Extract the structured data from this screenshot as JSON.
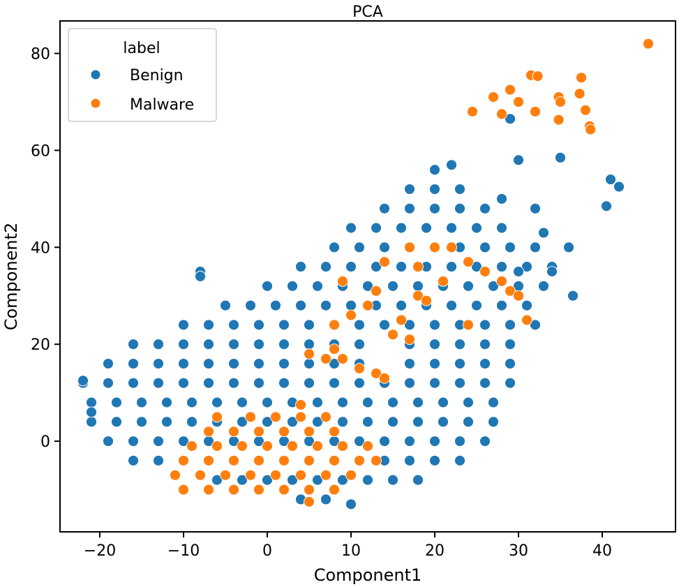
{
  "chart_data": {
    "type": "scatter",
    "title": "PCA",
    "xlabel": "Component1",
    "ylabel": "Component2",
    "xlim": [
      -24.75,
      48.75
    ],
    "ylim": [
      -18.7,
      86.7
    ],
    "xticks": [
      -20,
      -10,
      0,
      10,
      20,
      30,
      40
    ],
    "yticks": [
      0,
      20,
      40,
      60,
      80
    ],
    "xtick_labels": [
      "−20",
      "−10",
      "0",
      "10",
      "20",
      "30",
      "40"
    ],
    "ytick_labels": [
      "0",
      "20",
      "40",
      "60",
      "80"
    ],
    "grid": false,
    "legend": {
      "title": "label",
      "placement": "top-left"
    },
    "series": [
      {
        "name": "Benign",
        "color": "#1f77b4",
        "points": [
          [
            4,
            -12
          ],
          [
            7,
            -12
          ],
          [
            10,
            -13
          ],
          [
            -6,
            -8
          ],
          [
            -3,
            -8
          ],
          [
            0,
            -8
          ],
          [
            3,
            -8
          ],
          [
            6,
            -8
          ],
          [
            9,
            -8
          ],
          [
            12,
            -8
          ],
          [
            15,
            -8
          ],
          [
            18,
            -8
          ],
          [
            -16,
            -4
          ],
          [
            -13,
            -4
          ],
          [
            -10,
            -4
          ],
          [
            -7,
            -4
          ],
          [
            -4,
            -4
          ],
          [
            -1,
            -4
          ],
          [
            2,
            -4
          ],
          [
            5,
            -4
          ],
          [
            8,
            -4
          ],
          [
            11,
            -4
          ],
          [
            14,
            -4
          ],
          [
            17,
            -4
          ],
          [
            20,
            -4
          ],
          [
            23,
            -4
          ],
          [
            -19,
            0
          ],
          [
            -16,
            0
          ],
          [
            -13,
            0
          ],
          [
            -10,
            0
          ],
          [
            -7,
            0
          ],
          [
            -4,
            0
          ],
          [
            -1,
            0
          ],
          [
            2,
            0
          ],
          [
            5,
            0
          ],
          [
            8,
            0
          ],
          [
            11,
            0
          ],
          [
            14,
            0
          ],
          [
            17,
            0
          ],
          [
            20,
            0
          ],
          [
            23,
            0
          ],
          [
            26,
            0
          ],
          [
            -21,
            4
          ],
          [
            -18,
            4
          ],
          [
            -15,
            4
          ],
          [
            -12,
            4
          ],
          [
            -9,
            4
          ],
          [
            -6,
            4
          ],
          [
            -3,
            4
          ],
          [
            0,
            4
          ],
          [
            3,
            4
          ],
          [
            6,
            4
          ],
          [
            9,
            4
          ],
          [
            12,
            4
          ],
          [
            15,
            4
          ],
          [
            18,
            4
          ],
          [
            21,
            4
          ],
          [
            24,
            4
          ],
          [
            27,
            4
          ],
          [
            -21,
            8
          ],
          [
            -18,
            8
          ],
          [
            -15,
            8
          ],
          [
            -12,
            8
          ],
          [
            -9,
            8
          ],
          [
            -6,
            8
          ],
          [
            -3,
            8
          ],
          [
            0,
            8
          ],
          [
            3,
            8
          ],
          [
            6,
            8
          ],
          [
            9,
            8
          ],
          [
            12,
            8
          ],
          [
            15,
            8
          ],
          [
            18,
            8
          ],
          [
            21,
            8
          ],
          [
            24,
            8
          ],
          [
            27,
            8
          ],
          [
            -22,
            12
          ],
          [
            -19,
            12
          ],
          [
            -16,
            12
          ],
          [
            -13,
            12
          ],
          [
            -10,
            12
          ],
          [
            -7,
            12
          ],
          [
            -4,
            12
          ],
          [
            -1,
            12
          ],
          [
            2,
            12
          ],
          [
            5,
            12
          ],
          [
            8,
            12
          ],
          [
            11,
            12
          ],
          [
            14,
            12
          ],
          [
            17,
            12
          ],
          [
            20,
            12
          ],
          [
            23,
            12
          ],
          [
            26,
            12
          ],
          [
            29,
            12
          ],
          [
            -19,
            16
          ],
          [
            -16,
            16
          ],
          [
            -13,
            16
          ],
          [
            -10,
            16
          ],
          [
            -7,
            16
          ],
          [
            -4,
            16
          ],
          [
            -1,
            16
          ],
          [
            2,
            16
          ],
          [
            5,
            16
          ],
          [
            8,
            16
          ],
          [
            11,
            16
          ],
          [
            17,
            16
          ],
          [
            20,
            16
          ],
          [
            23,
            16
          ],
          [
            26,
            16
          ],
          [
            29,
            16
          ],
          [
            -16,
            20
          ],
          [
            -13,
            20
          ],
          [
            -10,
            20
          ],
          [
            -7,
            20
          ],
          [
            -4,
            20
          ],
          [
            -1,
            20
          ],
          [
            2,
            20
          ],
          [
            5,
            20
          ],
          [
            8,
            20
          ],
          [
            11,
            20
          ],
          [
            17,
            20
          ],
          [
            20,
            20
          ],
          [
            23,
            20
          ],
          [
            26,
            20
          ],
          [
            29,
            20
          ],
          [
            -10,
            24
          ],
          [
            -7,
            24
          ],
          [
            -4,
            24
          ],
          [
            -1,
            24
          ],
          [
            2,
            24
          ],
          [
            5,
            24
          ],
          [
            8,
            24
          ],
          [
            11,
            24
          ],
          [
            14,
            24
          ],
          [
            17,
            24
          ],
          [
            20,
            24
          ],
          [
            23,
            24
          ],
          [
            26,
            24
          ],
          [
            29,
            24
          ],
          [
            32,
            24
          ],
          [
            -5,
            28
          ],
          [
            -2,
            28
          ],
          [
            1,
            28
          ],
          [
            4,
            28
          ],
          [
            7,
            28
          ],
          [
            10,
            28
          ],
          [
            13,
            28
          ],
          [
            16,
            28
          ],
          [
            19,
            28
          ],
          [
            22,
            28
          ],
          [
            25,
            28
          ],
          [
            28,
            28
          ],
          [
            31,
            28
          ],
          [
            0,
            32
          ],
          [
            3,
            32
          ],
          [
            6,
            32
          ],
          [
            9,
            32
          ],
          [
            12,
            32
          ],
          [
            15,
            32
          ],
          [
            18,
            32
          ],
          [
            21,
            32
          ],
          [
            24,
            32
          ],
          [
            27,
            32
          ],
          [
            30,
            32
          ],
          [
            33,
            32
          ],
          [
            4,
            36
          ],
          [
            7,
            36
          ],
          [
            10,
            36
          ],
          [
            13,
            36
          ],
          [
            16,
            36
          ],
          [
            19,
            36
          ],
          [
            22,
            36
          ],
          [
            25,
            36
          ],
          [
            28,
            36
          ],
          [
            31,
            36
          ],
          [
            34,
            36
          ],
          [
            8,
            40
          ],
          [
            11,
            40
          ],
          [
            14,
            40
          ],
          [
            17,
            40
          ],
          [
            20,
            40
          ],
          [
            23,
            40
          ],
          [
            26,
            40
          ],
          [
            29,
            40
          ],
          [
            32,
            40
          ],
          [
            10,
            44
          ],
          [
            13,
            44
          ],
          [
            16,
            44
          ],
          [
            19,
            44
          ],
          [
            22,
            44
          ],
          [
            25,
            44
          ],
          [
            28,
            44
          ],
          [
            14,
            48
          ],
          [
            17,
            48
          ],
          [
            20,
            48
          ],
          [
            23,
            48
          ],
          [
            26,
            48
          ],
          [
            17,
            52
          ],
          [
            20,
            52
          ],
          [
            23,
            52
          ],
          [
            20,
            56
          ],
          [
            22,
            57
          ],
          [
            29,
            66.5
          ],
          [
            30,
            58
          ],
          [
            35,
            58.5
          ],
          [
            41,
            54
          ],
          [
            42,
            52.5
          ],
          [
            40.5,
            48.5
          ],
          [
            32,
            48
          ],
          [
            36.5,
            30
          ],
          [
            -8,
            35
          ],
          [
            -8,
            34
          ],
          [
            -22,
            12.5
          ],
          [
            -21,
            6
          ],
          [
            28,
            50
          ],
          [
            33,
            43
          ],
          [
            36,
            40
          ],
          [
            34,
            35
          ],
          [
            30,
            35
          ]
        ]
      },
      {
        "name": "Malware",
        "color": "#ff7f0e",
        "points": [
          [
            -10,
            -10
          ],
          [
            -7,
            -10
          ],
          [
            -4,
            -10
          ],
          [
            -1,
            -10
          ],
          [
            2,
            -10
          ],
          [
            5,
            -10
          ],
          [
            8,
            -10
          ],
          [
            5,
            -12.5
          ],
          [
            -11,
            -7
          ],
          [
            -8,
            -7
          ],
          [
            -5,
            -7
          ],
          [
            -2,
            -7
          ],
          [
            1,
            -7
          ],
          [
            4,
            -7
          ],
          [
            7,
            -7
          ],
          [
            10,
            -7
          ],
          [
            -10,
            -4
          ],
          [
            -7,
            -4
          ],
          [
            -4,
            -4
          ],
          [
            -1,
            -4
          ],
          [
            2,
            -4
          ],
          [
            5,
            -4
          ],
          [
            8,
            -4
          ],
          [
            11,
            -4
          ],
          [
            13,
            -4
          ],
          [
            -9,
            -1
          ],
          [
            -6,
            -1
          ],
          [
            -3,
            -1
          ],
          [
            0,
            -1
          ],
          [
            3,
            -1
          ],
          [
            6,
            -1
          ],
          [
            9,
            -1
          ],
          [
            12,
            -1
          ],
          [
            -7,
            2
          ],
          [
            -4,
            2
          ],
          [
            -1,
            2
          ],
          [
            2,
            2
          ],
          [
            5,
            2
          ],
          [
            8,
            2
          ],
          [
            -6,
            5
          ],
          [
            -2,
            5
          ],
          [
            1,
            5
          ],
          [
            4,
            5
          ],
          [
            7,
            5
          ],
          [
            4,
            7.5
          ],
          [
            5,
            18
          ],
          [
            7,
            17
          ],
          [
            8,
            19
          ],
          [
            9,
            17
          ],
          [
            11,
            15
          ],
          [
            13,
            14
          ],
          [
            14,
            13
          ],
          [
            10,
            26
          ],
          [
            12,
            28
          ],
          [
            13,
            31
          ],
          [
            14,
            37
          ],
          [
            17,
            40
          ],
          [
            18,
            36
          ],
          [
            18,
            30
          ],
          [
            20,
            40
          ],
          [
            22,
            40
          ],
          [
            24,
            37
          ],
          [
            26,
            35
          ],
          [
            28,
            33
          ],
          [
            29,
            31
          ],
          [
            30,
            30
          ],
          [
            31,
            25
          ],
          [
            16,
            25
          ],
          [
            19,
            29
          ],
          [
            21,
            33
          ],
          [
            24,
            24
          ],
          [
            15,
            22
          ],
          [
            17,
            21
          ],
          [
            8,
            24
          ],
          [
            9,
            33
          ],
          [
            24.5,
            68
          ],
          [
            27,
            71
          ],
          [
            28,
            67.5
          ],
          [
            29,
            72.5
          ],
          [
            30,
            70
          ],
          [
            31.5,
            75.5
          ],
          [
            32.3,
            75.3
          ],
          [
            32,
            68
          ],
          [
            34.8,
            71
          ],
          [
            35,
            70
          ],
          [
            34.8,
            66.3
          ],
          [
            37.5,
            75
          ],
          [
            37.3,
            71.7
          ],
          [
            38,
            68.3
          ],
          [
            38.5,
            65
          ],
          [
            38.6,
            64.3
          ],
          [
            45.5,
            82
          ]
        ]
      }
    ]
  }
}
